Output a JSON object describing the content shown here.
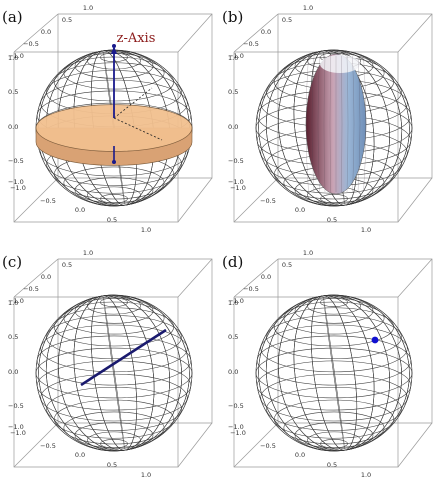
{
  "colors": {
    "wire": "#3a3a3a",
    "box": "#9a9a9a",
    "disk_fill": "#f2c08f",
    "disk_stroke": "#7a5a3a",
    "axis": "#1a1a8c",
    "zlabel": "#8b1a1a",
    "ellipsoid_light": "#f3f5f8",
    "ellipsoid_mid": "#9ab6d6",
    "ellipsoid_dark": "#5a1f2f",
    "line": "#1a1a6e",
    "point": "#1010d0"
  },
  "panels": [
    {
      "label": "(a)",
      "annotation": "z-Axis",
      "ticks": {
        "top": [
          "1.0",
          "0.5",
          "0.0",
          "−0.5",
          "−1.0"
        ],
        "left": [
          "1.0",
          "0.5",
          "0.0",
          "−0.5",
          "−1.0"
        ],
        "bottom": [
          "−0.5",
          "0.0",
          "0.5",
          "1.0"
        ],
        "bottom_left": "−1.0"
      },
      "content": "disk"
    },
    {
      "label": "(b)",
      "ticks": {
        "top": [
          "1.0",
          "0.5",
          "0.0",
          "−0.5",
          "−1.0"
        ],
        "left": [
          "1.0",
          "0.5",
          "0.0",
          "−0.5",
          "−1.0"
        ],
        "bottom": [
          "−0.5",
          "0.0",
          "0.5",
          "1.0"
        ],
        "bottom_left": "−1.0"
      },
      "content": "ellipsoid"
    },
    {
      "label": "(c)",
      "ticks": {
        "top": [
          "1.0",
          "0.5",
          "0.0",
          "−0.5",
          "−1.0"
        ],
        "left": [
          "1.0",
          "0.5",
          "0.0",
          "−0.5",
          "−1.0"
        ],
        "bottom": [
          "−0.5",
          "0.0",
          "0.5",
          "1.0"
        ],
        "bottom_left": "−1.0"
      },
      "content": "line"
    },
    {
      "label": "(d)",
      "ticks": {
        "top": [
          "1.0",
          "0.5",
          "0.0",
          "−0.5",
          "−1.0"
        ],
        "left": [
          "1.0",
          "0.5",
          "0.0",
          "−0.5",
          "−1.0"
        ],
        "bottom": [
          "−0.5",
          "0.0",
          "0.5",
          "1.0"
        ],
        "bottom_left": "−1.0"
      },
      "content": "point"
    }
  ]
}
